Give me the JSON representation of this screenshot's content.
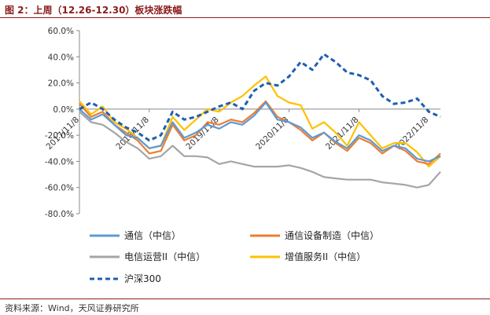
{
  "figure": {
    "title": "图 2：上周（12.26-12.30）板块涨跌幅",
    "source": "资料来源：Wind，天风证券研究所"
  },
  "colors": {
    "title_rule": "#8b1c1c",
    "tongxin": "#5b9bd5",
    "shebei": "#ed7d31",
    "dianxin": "#a5a5a5",
    "zengzhi": "#ffc000",
    "hs300": "#1f5fb0"
  },
  "chart_data": {
    "type": "line",
    "title": "",
    "xlabel": "",
    "ylabel": "",
    "ylim": [
      -80,
      60
    ],
    "grid": false,
    "legend_position": "bottom",
    "y_ticks": [
      "60.0%",
      "40.0%",
      "20.0%",
      "0.0%",
      "-20.0%",
      "-40.0%",
      "-60.0%",
      "-80.0%"
    ],
    "y_tick_values": [
      60,
      40,
      20,
      0,
      -20,
      -40,
      -60,
      -80
    ],
    "x_ticks": [
      "2017/11/8",
      "2018/11/8",
      "2019/11/8",
      "2020/11/8",
      "2021/11/8",
      "2022/11/8"
    ],
    "x": [
      "2017-11",
      "2018-01",
      "2018-03",
      "2018-05",
      "2018-07",
      "2018-09",
      "2018-11",
      "2019-01",
      "2019-03",
      "2019-05",
      "2019-07",
      "2019-09",
      "2019-11",
      "2020-01",
      "2020-03",
      "2020-05",
      "2020-07",
      "2020-09",
      "2020-11",
      "2021-01",
      "2021-03",
      "2021-05",
      "2021-07",
      "2021-09",
      "2021-11",
      "2022-01",
      "2022-03",
      "2022-05",
      "2022-07",
      "2022-09",
      "2022-11",
      "2022-12"
    ],
    "series": [
      {
        "name": "通信（中信）",
        "style": "solid",
        "values": [
          0,
          -8,
          -4,
          -12,
          -20,
          -22,
          -30,
          -28,
          -10,
          -22,
          -18,
          -12,
          -15,
          -10,
          -12,
          -5,
          5,
          -8,
          -10,
          -14,
          -22,
          -18,
          -25,
          -30,
          -20,
          -24,
          -32,
          -28,
          -30,
          -38,
          -40,
          -36
        ]
      },
      {
        "name": "通信设备制造（中信）",
        "style": "solid",
        "values": [
          4,
          -6,
          -2,
          -12,
          -18,
          -24,
          -34,
          -32,
          -12,
          -24,
          -20,
          -10,
          -12,
          -8,
          -10,
          -3,
          6,
          -6,
          -10,
          -16,
          -24,
          -18,
          -26,
          -32,
          -22,
          -26,
          -34,
          -28,
          -32,
          -40,
          -42,
          -34
        ]
      },
      {
        "name": "电信运营II（中信）",
        "style": "solid",
        "values": [
          -2,
          -10,
          -12,
          -18,
          -25,
          -30,
          -38,
          -36,
          -28,
          -36,
          -36,
          -37,
          -42,
          -40,
          -42,
          -44,
          -44,
          -44,
          -43,
          -45,
          -48,
          -52,
          -53,
          -54,
          -54,
          -54,
          -56,
          -57,
          -58,
          -60,
          -58,
          -48
        ]
      },
      {
        "name": "增值服务II（中信）",
        "style": "solid",
        "values": [
          6,
          -4,
          2,
          -10,
          -15,
          -22,
          -30,
          -28,
          -6,
          -16,
          -8,
          0,
          -2,
          5,
          10,
          18,
          25,
          10,
          5,
          3,
          -15,
          -10,
          -18,
          -28,
          -10,
          -20,
          -30,
          -26,
          -26,
          -33,
          -44,
          -36
        ]
      },
      {
        "name": "沪深300",
        "style": "dashed",
        "values": [
          0,
          5,
          0,
          -8,
          -14,
          -18,
          -24,
          -20,
          -2,
          -8,
          -6,
          -2,
          2,
          5,
          0,
          14,
          20,
          18,
          25,
          36,
          30,
          42,
          36,
          28,
          26,
          22,
          10,
          4,
          5,
          8,
          -2,
          -6
        ]
      }
    ]
  }
}
